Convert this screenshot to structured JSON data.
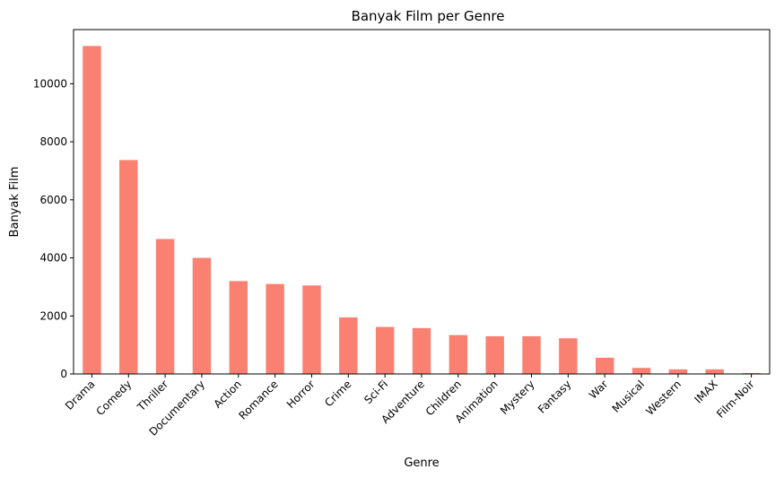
{
  "chart_data": {
    "type": "bar",
    "title": "Banyak Film per Genre",
    "xlabel": "Genre",
    "ylabel": "Banyak Film",
    "categories": [
      "Drama",
      "Comedy",
      "Thriller",
      "Documentary",
      "Action",
      "Romance",
      "Horror",
      "Crime",
      "Sci-Fi",
      "Adventure",
      "Children",
      "Animation",
      "Mystery",
      "Fantasy",
      "War",
      "Musical",
      "Western",
      "IMAX",
      "Film-Noir"
    ],
    "values": [
      11300,
      7370,
      4650,
      4000,
      3200,
      3100,
      3050,
      1950,
      1620,
      1580,
      1340,
      1300,
      1300,
      1230,
      560,
      210,
      160,
      160,
      30
    ],
    "ylim": [
      0,
      11865
    ],
    "yticks": [
      0,
      2000,
      4000,
      6000,
      8000,
      10000
    ],
    "grid": false,
    "bar_color": "#fa8072"
  }
}
